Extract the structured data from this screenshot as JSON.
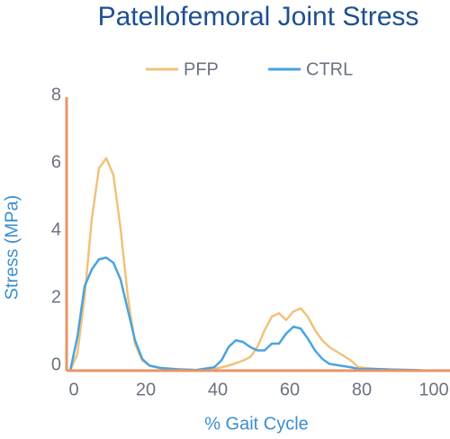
{
  "chart_data": {
    "type": "line",
    "title": "Patellofemoral Joint Stress",
    "x_label": "% Gait Cycle",
    "y_label": "Stress (MPa)",
    "x": [
      0,
      2,
      4,
      6,
      8,
      10,
      12,
      14,
      16,
      18,
      20,
      22,
      25,
      30,
      35,
      40,
      42,
      44,
      46,
      48,
      50,
      52,
      54,
      56,
      58,
      60,
      62,
      64,
      66,
      68,
      70,
      72,
      75,
      78,
      80,
      85,
      90,
      95,
      100
    ],
    "series": [
      {
        "name": "PFP",
        "color": "#f0c27a",
        "values": [
          0,
          0.5,
          2.2,
          4.5,
          6.0,
          6.3,
          5.8,
          4.2,
          2.2,
          0.8,
          0.3,
          0.15,
          0.08,
          0.04,
          0.02,
          0.05,
          0.1,
          0.15,
          0.22,
          0.3,
          0.4,
          0.7,
          1.2,
          1.6,
          1.7,
          1.5,
          1.75,
          1.85,
          1.6,
          1.2,
          0.9,
          0.7,
          0.5,
          0.3,
          0.1,
          0.05,
          0.03,
          0.02,
          0
        ]
      },
      {
        "name": "CTRL",
        "color": "#4aa3df",
        "values": [
          0,
          1.0,
          2.5,
          3.0,
          3.3,
          3.35,
          3.2,
          2.7,
          1.8,
          0.9,
          0.35,
          0.15,
          0.08,
          0.04,
          0.02,
          0.1,
          0.3,
          0.7,
          0.9,
          0.85,
          0.7,
          0.6,
          0.6,
          0.8,
          0.8,
          1.1,
          1.3,
          1.25,
          0.95,
          0.6,
          0.35,
          0.2,
          0.15,
          0.1,
          0.05,
          0.05,
          0.03,
          0.02,
          0
        ]
      }
    ],
    "xlim": [
      0,
      100
    ],
    "xticks": [
      0,
      20,
      40,
      60,
      80,
      100
    ],
    "ylim": [
      0,
      8
    ],
    "yticks": [
      0,
      2,
      4,
      6,
      8
    ],
    "legend": "top",
    "axis_color": "#e8956a"
  }
}
